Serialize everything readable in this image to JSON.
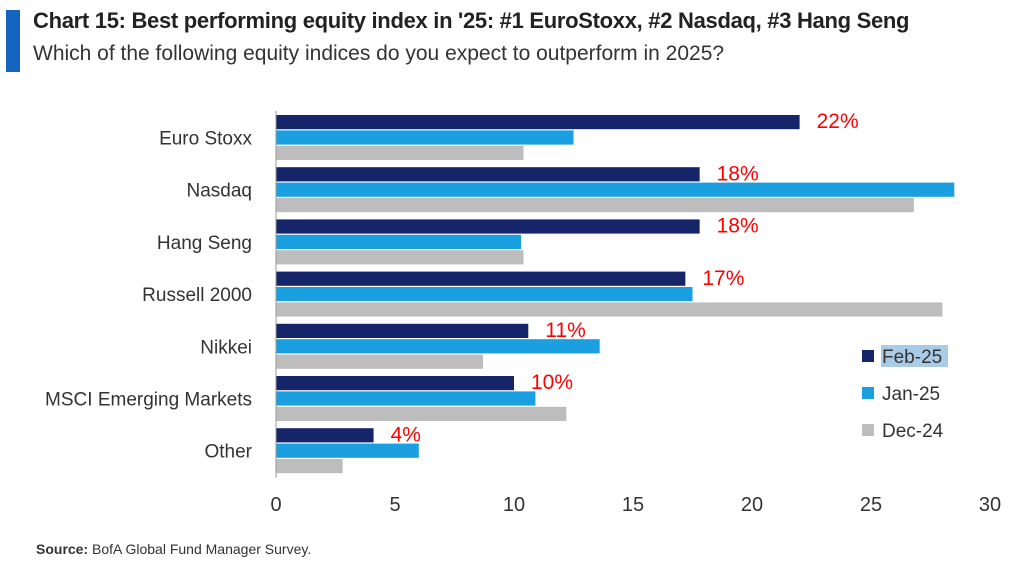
{
  "header": {
    "title": "Chart 15: Best performing equity index in '25: #1 EuroStoxx, #2 Nasdaq, #3 Hang Seng",
    "subtitle": "Which of the following equity indices do you expect to outperform in 2025?"
  },
  "footer": {
    "source_label": "Source:",
    "source_text": "BofA Global Fund Manager Survey."
  },
  "colors": {
    "accent": "#1565c0",
    "feb25": "#16246a",
    "jan25": "#1aa0e0",
    "dec24": "#bdbdbd",
    "label_red": "#ff0000"
  },
  "chart_data": {
    "type": "bar",
    "orientation": "horizontal",
    "categories": [
      "Euro Stoxx",
      "Nasdaq",
      "Hang Seng",
      "Russell 2000",
      "Nikkei",
      "MSCI Emerging Markets",
      "Other"
    ],
    "series": [
      {
        "name": "Feb-25",
        "values": [
          22,
          17.8,
          17.8,
          17.2,
          10.6,
          10,
          4.1
        ]
      },
      {
        "name": "Jan-25",
        "values": [
          12.5,
          28.5,
          10.3,
          17.5,
          13.6,
          10.9,
          6
        ]
      },
      {
        "name": "Dec-24",
        "values": [
          10.4,
          26.8,
          10.4,
          28,
          8.7,
          12.2,
          2.8
        ]
      }
    ],
    "data_labels": [
      "22%",
      "18%",
      "18%",
      "17%",
      "11%",
      "10%",
      "4%"
    ],
    "data_labels_series": "Feb-25",
    "xlim": [
      0,
      30
    ],
    "xticks": [
      "0",
      "5",
      "10",
      "15",
      "20",
      "25",
      "30"
    ],
    "legend_position": "right",
    "grid": false
  }
}
